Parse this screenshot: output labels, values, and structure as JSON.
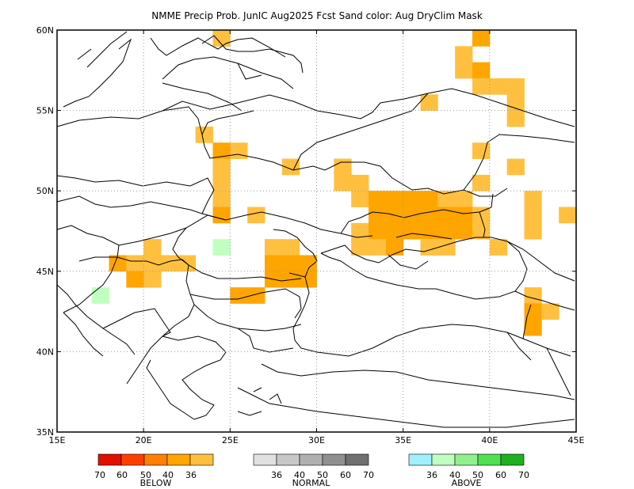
{
  "title": "NMME Precip Prob. JunIC  Aug2025 Fcst  Sand color: Aug DryClim Mask",
  "axes": {
    "lon_labels": [
      "15E",
      "20E",
      "25E",
      "30E",
      "35E",
      "40E",
      "45E"
    ],
    "lat_labels": [
      "35N",
      "40N",
      "45N",
      "50N",
      "55N",
      "60N"
    ],
    "lon_values": [
      15,
      20,
      25,
      30,
      35,
      40,
      45
    ],
    "lat_values": [
      35,
      40,
      45,
      50,
      55,
      60
    ],
    "lon_range": [
      15,
      45
    ],
    "lat_range": [
      35,
      60
    ],
    "grid": true,
    "grid_style": "dotted"
  },
  "colors": {
    "below_36": "#ffc040",
    "below_40": "#ffa500",
    "below_50": "#ff7f00",
    "below_60": "#ff3f00",
    "below_70": "#e01000",
    "above_36": "#c0ffc0",
    "coast": "#000000"
  },
  "legends": [
    {
      "title": "BELOW",
      "ticks": [
        "70",
        "60",
        "50",
        "40",
        "36"
      ],
      "colors": [
        "#e01000",
        "#ff3f00",
        "#ff7f00",
        "#ffa500",
        "#ffc040"
      ]
    },
    {
      "title": "NORMAL",
      "ticks": [
        "36",
        "40",
        "50",
        "60",
        "70"
      ],
      "colors": [
        "#e0e0e0",
        "#c8c8c8",
        "#b0b0b0",
        "#909090",
        "#707070"
      ]
    },
    {
      "title": "ABOVE",
      "ticks": [
        "36",
        "40",
        "50",
        "60",
        "70"
      ],
      "colors": [
        "#a0f0ff",
        "#c0ffc0",
        "#90f090",
        "#50e050",
        "#20b020"
      ]
    }
  ],
  "forecast_cells": {
    "cell_size_deg": 1,
    "cells": [
      [
        24,
        59,
        "b36"
      ],
      [
        39,
        59,
        "b40"
      ],
      [
        38,
        58,
        "b36"
      ],
      [
        38,
        57,
        "b36"
      ],
      [
        39,
        57,
        "b40"
      ],
      [
        39,
        56,
        "b36"
      ],
      [
        40,
        56,
        "b36"
      ],
      [
        41,
        56,
        "b36"
      ],
      [
        36,
        55,
        "b36"
      ],
      [
        41,
        55,
        "b36"
      ],
      [
        41,
        54,
        "b36"
      ],
      [
        23,
        53,
        "b36"
      ],
      [
        24,
        52,
        "b40"
      ],
      [
        25,
        52,
        "b36"
      ],
      [
        39,
        52,
        "b36"
      ],
      [
        24,
        51,
        "b36"
      ],
      [
        28,
        51,
        "b36"
      ],
      [
        31,
        51,
        "b36"
      ],
      [
        41,
        51,
        "b36"
      ],
      [
        24,
        50,
        "b36"
      ],
      [
        31,
        50,
        "b36"
      ],
      [
        32,
        50,
        "b36"
      ],
      [
        39,
        50,
        "b36"
      ],
      [
        24,
        49,
        "b36"
      ],
      [
        32,
        49,
        "b36"
      ],
      [
        33,
        49,
        "b40"
      ],
      [
        34,
        49,
        "b40"
      ],
      [
        35,
        49,
        "b40"
      ],
      [
        36,
        49,
        "b40"
      ],
      [
        37,
        49,
        "b36"
      ],
      [
        38,
        49,
        "b36"
      ],
      [
        42,
        49,
        "b36"
      ],
      [
        24,
        48,
        "b40"
      ],
      [
        26,
        48,
        "b36"
      ],
      [
        33,
        48,
        "b40"
      ],
      [
        34,
        48,
        "b40"
      ],
      [
        35,
        48,
        "b40"
      ],
      [
        36,
        48,
        "b40"
      ],
      [
        37,
        48,
        "b40"
      ],
      [
        38,
        48,
        "b40"
      ],
      [
        39,
        48,
        "b36"
      ],
      [
        42,
        48,
        "b36"
      ],
      [
        44,
        48,
        "b36"
      ],
      [
        32,
        47,
        "b36"
      ],
      [
        33,
        47,
        "b40"
      ],
      [
        34,
        47,
        "b40"
      ],
      [
        35,
        47,
        "b40"
      ],
      [
        36,
        47,
        "b40"
      ],
      [
        37,
        47,
        "b40"
      ],
      [
        38,
        47,
        "b40"
      ],
      [
        39,
        47,
        "b36"
      ],
      [
        42,
        47,
        "b36"
      ],
      [
        20,
        46,
        "b36"
      ],
      [
        24,
        46,
        "a36"
      ],
      [
        27,
        46,
        "b36"
      ],
      [
        28,
        46,
        "b36"
      ],
      [
        32,
        46,
        "b36"
      ],
      [
        33,
        46,
        "b36"
      ],
      [
        34,
        46,
        "b40"
      ],
      [
        36,
        46,
        "b36"
      ],
      [
        37,
        46,
        "b36"
      ],
      [
        40,
        46,
        "b36"
      ],
      [
        18,
        45,
        "b40"
      ],
      [
        19,
        45,
        "b36"
      ],
      [
        20,
        45,
        "b36"
      ],
      [
        21,
        45,
        "b36"
      ],
      [
        22,
        45,
        "b36"
      ],
      [
        27,
        45,
        "b40"
      ],
      [
        28,
        45,
        "b40"
      ],
      [
        29,
        45,
        "b40"
      ],
      [
        19,
        44,
        "b40"
      ],
      [
        20,
        44,
        "b36"
      ],
      [
        27,
        44,
        "b40"
      ],
      [
        28,
        44,
        "b40"
      ],
      [
        29,
        44,
        "b40"
      ],
      [
        17,
        43,
        "a36"
      ],
      [
        25,
        43,
        "b40"
      ],
      [
        26,
        43,
        "b40"
      ],
      [
        42,
        43,
        "b36"
      ],
      [
        42,
        42,
        "b40"
      ],
      [
        43,
        42,
        "b36"
      ],
      [
        42,
        41,
        "b40"
      ]
    ]
  }
}
